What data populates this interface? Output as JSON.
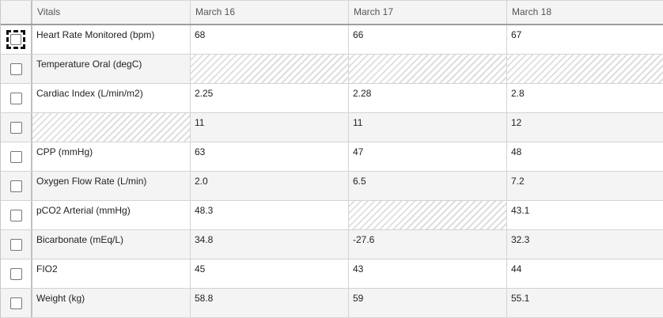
{
  "header": {
    "vitals_label": "Vitals",
    "dates": [
      "March 16",
      "March 17",
      "March 18"
    ]
  },
  "rows": [
    {
      "name": "Heart Rate Monitored (bpm)",
      "values": [
        "68",
        "66",
        "67"
      ]
    },
    {
      "name": "Temperature Oral (degC)",
      "values": [
        "",
        "",
        ""
      ]
    },
    {
      "name": "Cardiac Index (L/min/m2)",
      "values": [
        "2.25",
        "2.28",
        "2.8"
      ]
    },
    {
      "name": "",
      "values": [
        "11",
        "11",
        "12"
      ]
    },
    {
      "name": "CPP (mmHg)",
      "values": [
        "63",
        "47",
        "48"
      ]
    },
    {
      "name": "Oxygen Flow Rate (L/min)",
      "values": [
        "2.0",
        "6.5",
        "7.2"
      ]
    },
    {
      "name": "pCO2 Arterial (mmHg)",
      "values": [
        "48.3",
        "",
        "43.1"
      ]
    },
    {
      "name": "Bicarbonate (mEq/L)",
      "values": [
        "34.8",
        "-27.6",
        "32.3"
      ]
    },
    {
      "name": "FIO2",
      "values": [
        "45",
        "43",
        "44"
      ]
    },
    {
      "name": "Weight (kg)",
      "values": [
        "58.8",
        "59",
        "55.1"
      ]
    }
  ]
}
